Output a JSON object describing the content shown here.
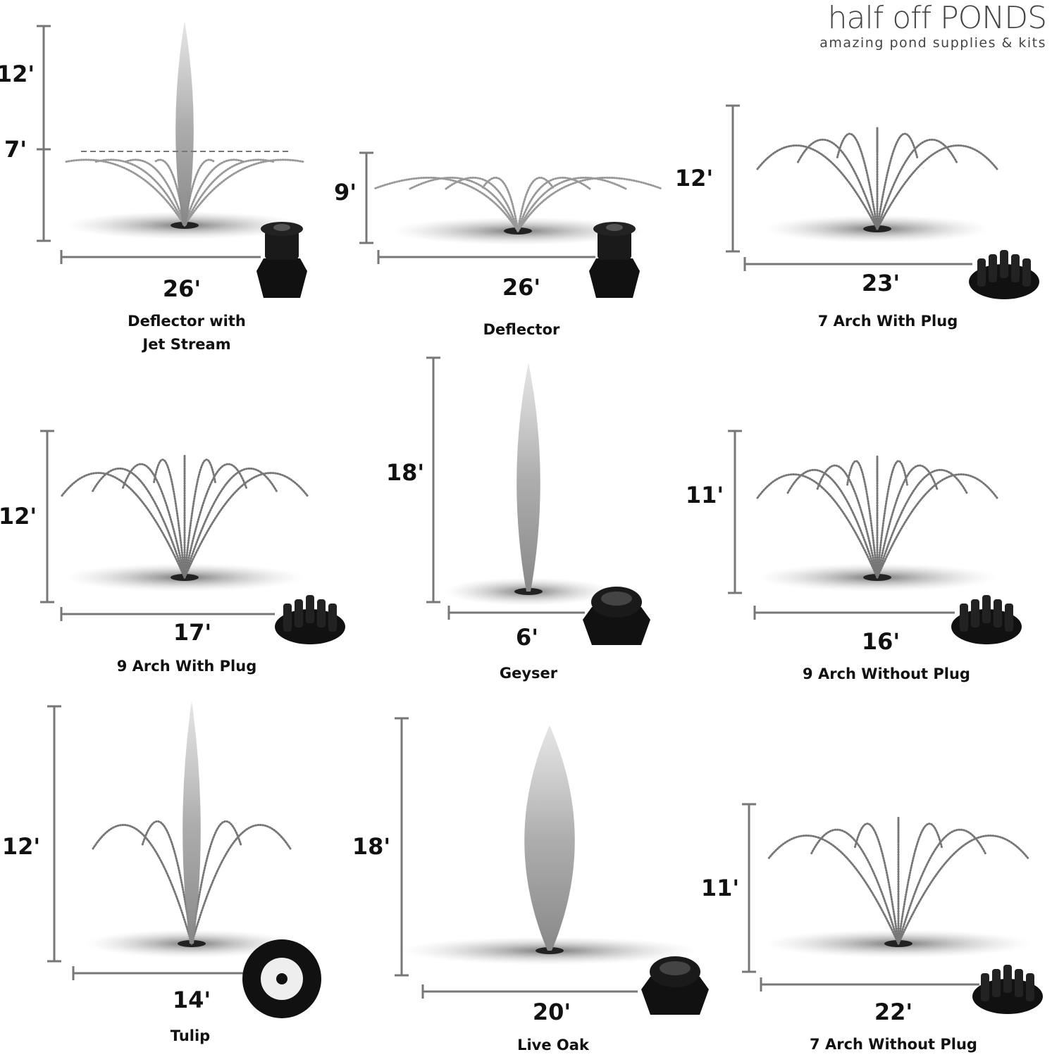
{
  "logo": {
    "brand": "half off PONDS",
    "tagline": "amazing pond supplies & kits"
  },
  "panels": [
    {
      "name": "Deflector with Jet Stream",
      "height": "12'",
      "secondary_height": "7'",
      "width": "26'"
    },
    {
      "name": "Deflector",
      "height": "9'",
      "width": "26'"
    },
    {
      "name": "7 Arch With Plug",
      "height": "12'",
      "width": "23'"
    },
    {
      "name": "9 Arch With Plug",
      "height": "12'",
      "width": "17'"
    },
    {
      "name": "Geyser",
      "height": "18'",
      "width": "6'"
    },
    {
      "name": "9 Arch Without Plug",
      "height": "11'",
      "width": "16'"
    },
    {
      "name": "Tulip",
      "height": "12'",
      "width": "14'"
    },
    {
      "name": "Live Oak",
      "height": "18'",
      "width": "20'"
    },
    {
      "name": "7 Arch Without Plug",
      "height": "11'",
      "width": "22'"
    }
  ]
}
